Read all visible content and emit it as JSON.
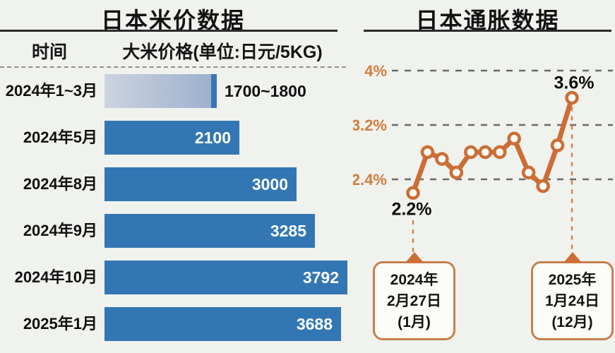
{
  "colors": {
    "background": "#f0f2ee",
    "bar_blue": "#3277b3",
    "bar_gradient_start": "#ccd3e0",
    "bar_gradient_end": "#9db1cd",
    "bar_gradient_cap": "#3a76b0",
    "line_orange": "#cb6e35",
    "point_fill": "#fbfbf7",
    "axis_label_orange": "#d47c3e",
    "grid_dash_gray": "#6b6b6b",
    "drop_line_orange": "#d2854f",
    "callout_border": "#c6804e",
    "text_dark": "#111111"
  },
  "chart_data": [
    {
      "type": "bar",
      "orientation": "horizontal",
      "title": "日本米价数据",
      "columns": [
        "时间",
        "大米价格(单位:日元/5KG)"
      ],
      "unit": "日元/5KG",
      "categories": [
        "2024年1~3月",
        "2024年5月",
        "2024年8月",
        "2024年9月",
        "2024年10月",
        "2025年1月"
      ],
      "values": [
        1750,
        2100,
        3000,
        3285,
        3792,
        3688
      ],
      "value_labels": [
        "1700~1800",
        "2100",
        "3000",
        "3285",
        "3792",
        "3688"
      ],
      "xlim": [
        0,
        3792
      ],
      "first_bar_is_range": true,
      "first_bar_range": [
        1700,
        1800
      ],
      "grid": "off",
      "legend": "none"
    },
    {
      "type": "line",
      "title": "日本通胀数据",
      "values": [
        2.2,
        2.8,
        2.7,
        2.5,
        2.8,
        2.8,
        2.8,
        3.0,
        2.5,
        2.3,
        2.9,
        3.6
      ],
      "yticks": [
        {
          "value": 4.0,
          "label": "4%"
        },
        {
          "value": 3.2,
          "label": "3.2%"
        },
        {
          "value": 2.4,
          "label": "2.4%"
        }
      ],
      "first_point_label": "2.2%",
      "last_point_label": "3.6%",
      "grid": "dashed horizontal",
      "legend": "none",
      "ylim": [
        2.0,
        4.0
      ],
      "annotations": [
        {
          "lines": [
            "2024年",
            "2月27日",
            "(1月)"
          ]
        },
        {
          "lines": [
            "2025年",
            "1月24日",
            "(12月)"
          ]
        }
      ]
    }
  ]
}
